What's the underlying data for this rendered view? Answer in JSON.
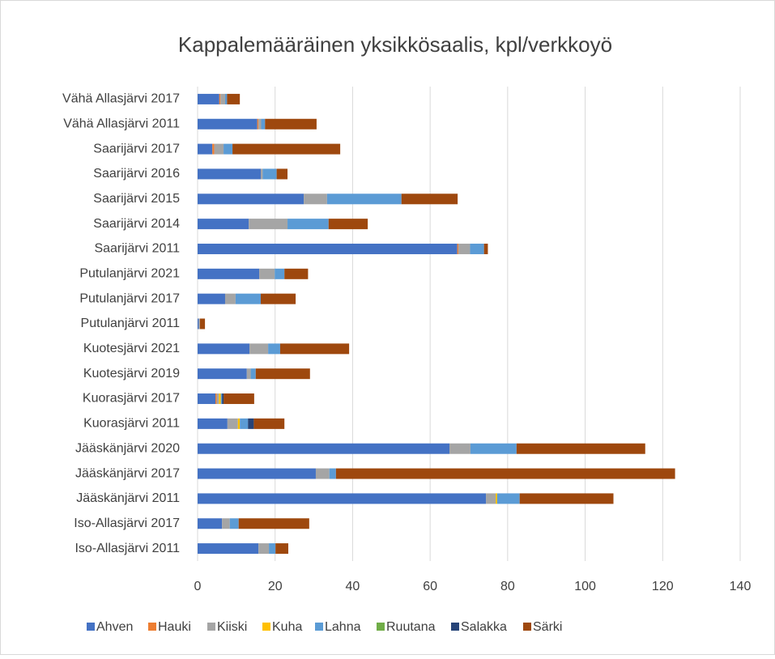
{
  "chart_data": {
    "type": "stacked-barh",
    "title": "Kappalemääräinen yksikkösaalis, kpl/verkkoyö",
    "categories": [
      "Vähä Allasjärvi 2017",
      "Vähä Allasjärvi 2011",
      "Saarijärvi 2017",
      "Saarijärvi 2016",
      "Saarijärvi 2015",
      "Saarijärvi 2014",
      "Saarijärvi 2011",
      "Putulanjärvi 2021",
      "Putulanjärvi 2017",
      "Putulanjärvi 2011",
      "Kuotesjärvi 2021",
      "Kuotesjärvi 2019",
      "Kuorasjärvi 2017",
      "Kuorasjärvi 2011",
      "Jääskänjärvi 2020",
      "Jääskänjärvi 2017",
      "Jääskänjärvi 2011",
      "Iso-Allasjärvi 2017",
      "Iso-Allasjärvi 2011"
    ],
    "series": [
      {
        "name": "Ahven",
        "color": "#4472c4",
        "values": [
          5.6,
          15.4,
          3.8,
          16.3,
          27.4,
          13.2,
          67,
          15.9,
          7.1,
          0.3,
          13.4,
          12.7,
          4.6,
          7.7,
          65,
          30.5,
          74.4,
          6.3,
          15.7
        ]
      },
      {
        "name": "Hauki",
        "color": "#ed7d31",
        "values": [
          0.3,
          0.3,
          0.5,
          0,
          0,
          0,
          0.3,
          0,
          0,
          0,
          0,
          0,
          0.3,
          0,
          0,
          0,
          0,
          0,
          0
        ]
      },
      {
        "name": "Kiiski",
        "color": "#a5a5a5",
        "values": [
          1.2,
          0.7,
          2.4,
          0.5,
          6,
          10,
          3,
          4,
          2.7,
          0.3,
          4.8,
          1,
          0.6,
          2.7,
          5.4,
          3.5,
          2.5,
          2,
          2.7
        ]
      },
      {
        "name": "Kuha",
        "color": "#ffc000",
        "values": [
          0,
          0,
          0,
          0,
          0,
          0,
          0,
          0,
          0,
          0,
          0,
          0,
          0.5,
          0.5,
          0,
          0,
          0.4,
          0,
          0
        ]
      },
      {
        "name": "Lahna",
        "color": "#5b9bd5",
        "values": [
          0.5,
          1,
          2.3,
          3.6,
          19.2,
          10.6,
          3.6,
          2.5,
          6.5,
          0,
          3.1,
          1.3,
          0.3,
          2.1,
          11.9,
          1.7,
          5.8,
          2.3,
          1.7
        ]
      },
      {
        "name": "Ruutana",
        "color": "#70ad47",
        "values": [
          0,
          0,
          0,
          0,
          0,
          0,
          0,
          0,
          0,
          0,
          0,
          0,
          0,
          0,
          0,
          0,
          0,
          0,
          0
        ]
      },
      {
        "name": "Salakka",
        "color": "#264478",
        "values": [
          0,
          0,
          0,
          0,
          0,
          0,
          0,
          0,
          0,
          0,
          0,
          0,
          0.4,
          1.5,
          0,
          0,
          0,
          0,
          0
        ]
      },
      {
        "name": "Särki",
        "color": "#9e480e",
        "values": [
          3.3,
          13.3,
          27.8,
          2.8,
          14.5,
          10.1,
          1,
          6.1,
          9,
          1.3,
          17.8,
          14,
          7.9,
          7.9,
          33.2,
          87.5,
          24.2,
          18.2,
          3.3
        ]
      }
    ],
    "xlim": [
      0,
      140
    ],
    "xticks": [
      0,
      20,
      40,
      60,
      80,
      100,
      120,
      140
    ],
    "grid": true,
    "legend": "bottom"
  }
}
